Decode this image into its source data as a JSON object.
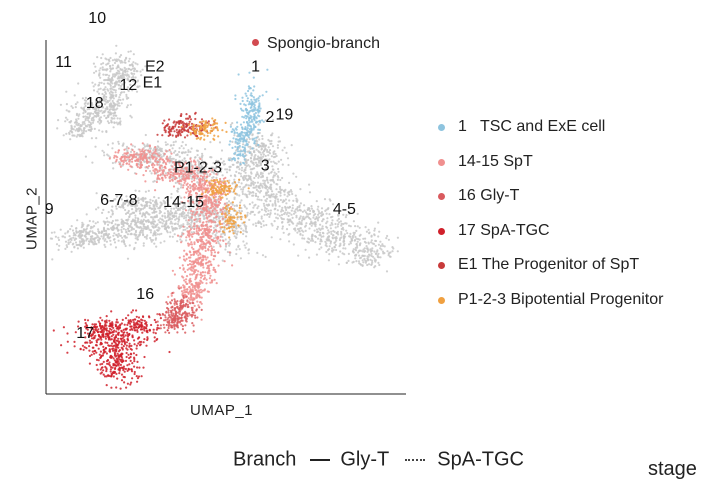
{
  "top_legend": {
    "label": "Spongio-branch",
    "color": "#d24a50"
  },
  "axes": {
    "xlabel": "UMAP_1",
    "ylabel": "UMAP_2"
  },
  "legend": [
    {
      "id": "1",
      "label": "1   TSC and ExE cell",
      "color": "#8ec4df"
    },
    {
      "id": "14-15",
      "label": "14-15 SpT",
      "color": "#f0908f"
    },
    {
      "id": "16",
      "label": "16 Gly-T",
      "color": "#d95a5e"
    },
    {
      "id": "17",
      "label": "17 SpA-TGC",
      "color": "#d0202a"
    },
    {
      "id": "E1",
      "label": "E1 The Progenitor of SpT",
      "color": "#c83a3a"
    },
    {
      "id": "P1-2-3",
      "label": "P1-2-3 Bipotential Progenitor",
      "color": "#f0a040"
    }
  ],
  "background_color": "#c8c8c8",
  "branch_legend": {
    "title": "Branch",
    "solid": "Gly-T",
    "dotted": "SpA-TGC"
  },
  "stage_label": "stage",
  "chart_data": {
    "type": "scatter",
    "title": "",
    "xlabel": "UMAP_1",
    "ylabel": "UMAP_2",
    "legend_position": "right",
    "grid": false,
    "cluster_labels": [
      {
        "text": "10",
        "x": -4.2,
        "y": 9.3
      },
      {
        "text": "11",
        "x": -5.6,
        "y": 7.4
      },
      {
        "text": "E2",
        "x": -1.8,
        "y": 7.2
      },
      {
        "text": "1",
        "x": 2.4,
        "y": 7.2
      },
      {
        "text": "12",
        "x": -2.9,
        "y": 6.4
      },
      {
        "text": "E1",
        "x": -1.9,
        "y": 6.5
      },
      {
        "text": "18",
        "x": -4.3,
        "y": 5.6
      },
      {
        "text": "2",
        "x": 3.0,
        "y": 5.0
      },
      {
        "text": "19",
        "x": 3.6,
        "y": 5.1
      },
      {
        "text": "P1-2-3",
        "x": 0.0,
        "y": 2.8
      },
      {
        "text": "3",
        "x": 2.8,
        "y": 2.9
      },
      {
        "text": "9",
        "x": -6.2,
        "y": 1.0
      },
      {
        "text": "6-7-8",
        "x": -3.3,
        "y": 1.4
      },
      {
        "text": "14-15",
        "x": -0.6,
        "y": 1.3
      },
      {
        "text": "4-5",
        "x": 6.1,
        "y": 1.0
      },
      {
        "text": "16",
        "x": -2.2,
        "y": -2.7
      },
      {
        "text": "17",
        "x": -4.7,
        "y": -4.4
      }
    ],
    "series": [
      {
        "name": "1   TSC and ExE cell",
        "color": "#8ec4df"
      },
      {
        "name": "14-15 SpT",
        "color": "#f0908f"
      },
      {
        "name": "16 Gly-T",
        "color": "#d95a5e"
      },
      {
        "name": "17 SpA-TGC",
        "color": "#d0202a"
      },
      {
        "name": "E1 The Progenitor of SpT",
        "color": "#c83a3a"
      },
      {
        "name": "P1-2-3 Bipotential Progenitor",
        "color": "#f0a040"
      }
    ]
  }
}
